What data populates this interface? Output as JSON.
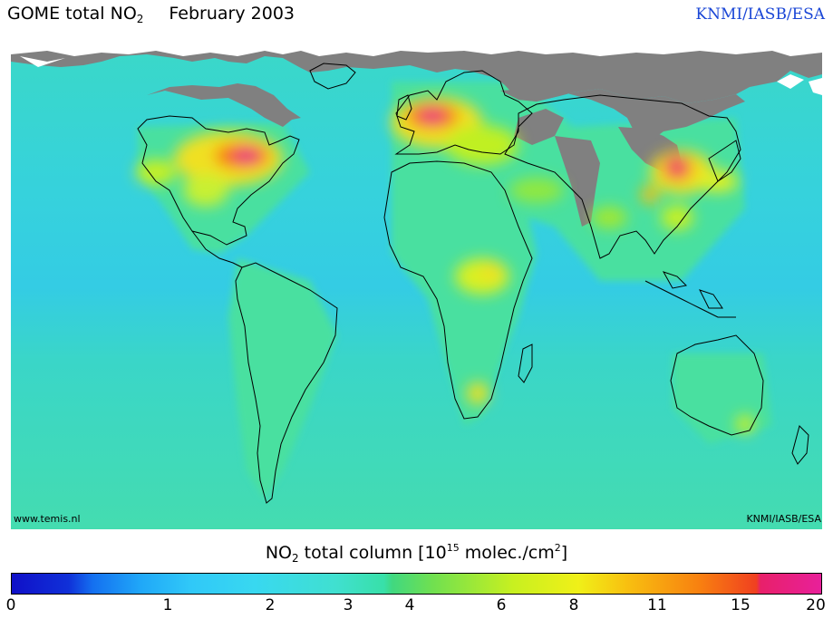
{
  "header": {
    "title_main": "GOME total NO",
    "title_sub": "2",
    "title_date": "February 2003",
    "credit": "KNMI/IASB/ESA"
  },
  "map": {
    "watermark_left": "www.temis.nl",
    "watermark_right": "KNMI/IASB/ESA",
    "colors": {
      "ocean": "#3ad6d0",
      "land_base": "#49e0a2",
      "no_data": "#808080",
      "snow": "#ffffff"
    }
  },
  "legend": {
    "label_pre": "NO",
    "label_sub": "2",
    "label_mid": " total column [10",
    "label_sup1": "15",
    "label_mid2": " molec./cm",
    "label_sup2": "2",
    "label_end": "]",
    "ticks": [
      "0",
      "1",
      "2",
      "3",
      "4",
      "6",
      "8",
      "11",
      "15",
      "20"
    ]
  }
}
